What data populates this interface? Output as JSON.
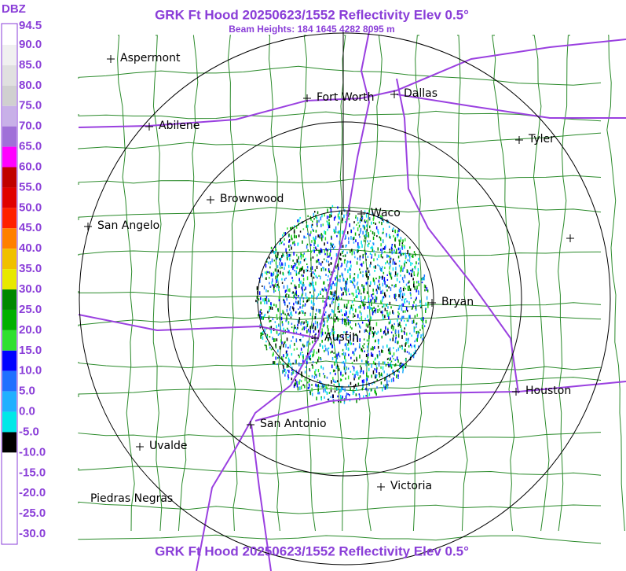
{
  "header": {
    "title": "GRK Ft Hood 20250623/1552 Reflectivity Elev 0.5°",
    "subtitle": "Beam Heights: 184 1645 4282 8095 m"
  },
  "colorbar": {
    "unit": "DBZ",
    "labels": [
      "94.5",
      "90.0",
      "85.0",
      "80.0",
      "75.0",
      "70.0",
      "65.0",
      "60.0",
      "55.0",
      "50.0",
      "45.0",
      "40.0",
      "35.0",
      "30.0",
      "25.0",
      "20.0",
      "15.0",
      "10.0",
      "5.0",
      "0.0",
      "-5.0",
      "-10.0",
      "-15.0",
      "-20.0",
      "-25.0",
      "-30.0"
    ]
  },
  "cities": [
    {
      "name": "Aspermont"
    },
    {
      "name": "Fort Worth"
    },
    {
      "name": "Dallas"
    },
    {
      "name": "Abilene"
    },
    {
      "name": "Tyler"
    },
    {
      "name": "Brownwood"
    },
    {
      "name": "Waco"
    },
    {
      "name": "San Angelo"
    },
    {
      "name": "Bryan"
    },
    {
      "name": "Austin"
    },
    {
      "name": "Houston"
    },
    {
      "name": "San Antonio"
    },
    {
      "name": "Uvalde"
    },
    {
      "name": "Victoria"
    },
    {
      "name": "Piedras Negras"
    }
  ],
  "footer": {
    "title": "GRK Ft Hood 20250623/1552 Reflectivity Elev 0.5°"
  }
}
